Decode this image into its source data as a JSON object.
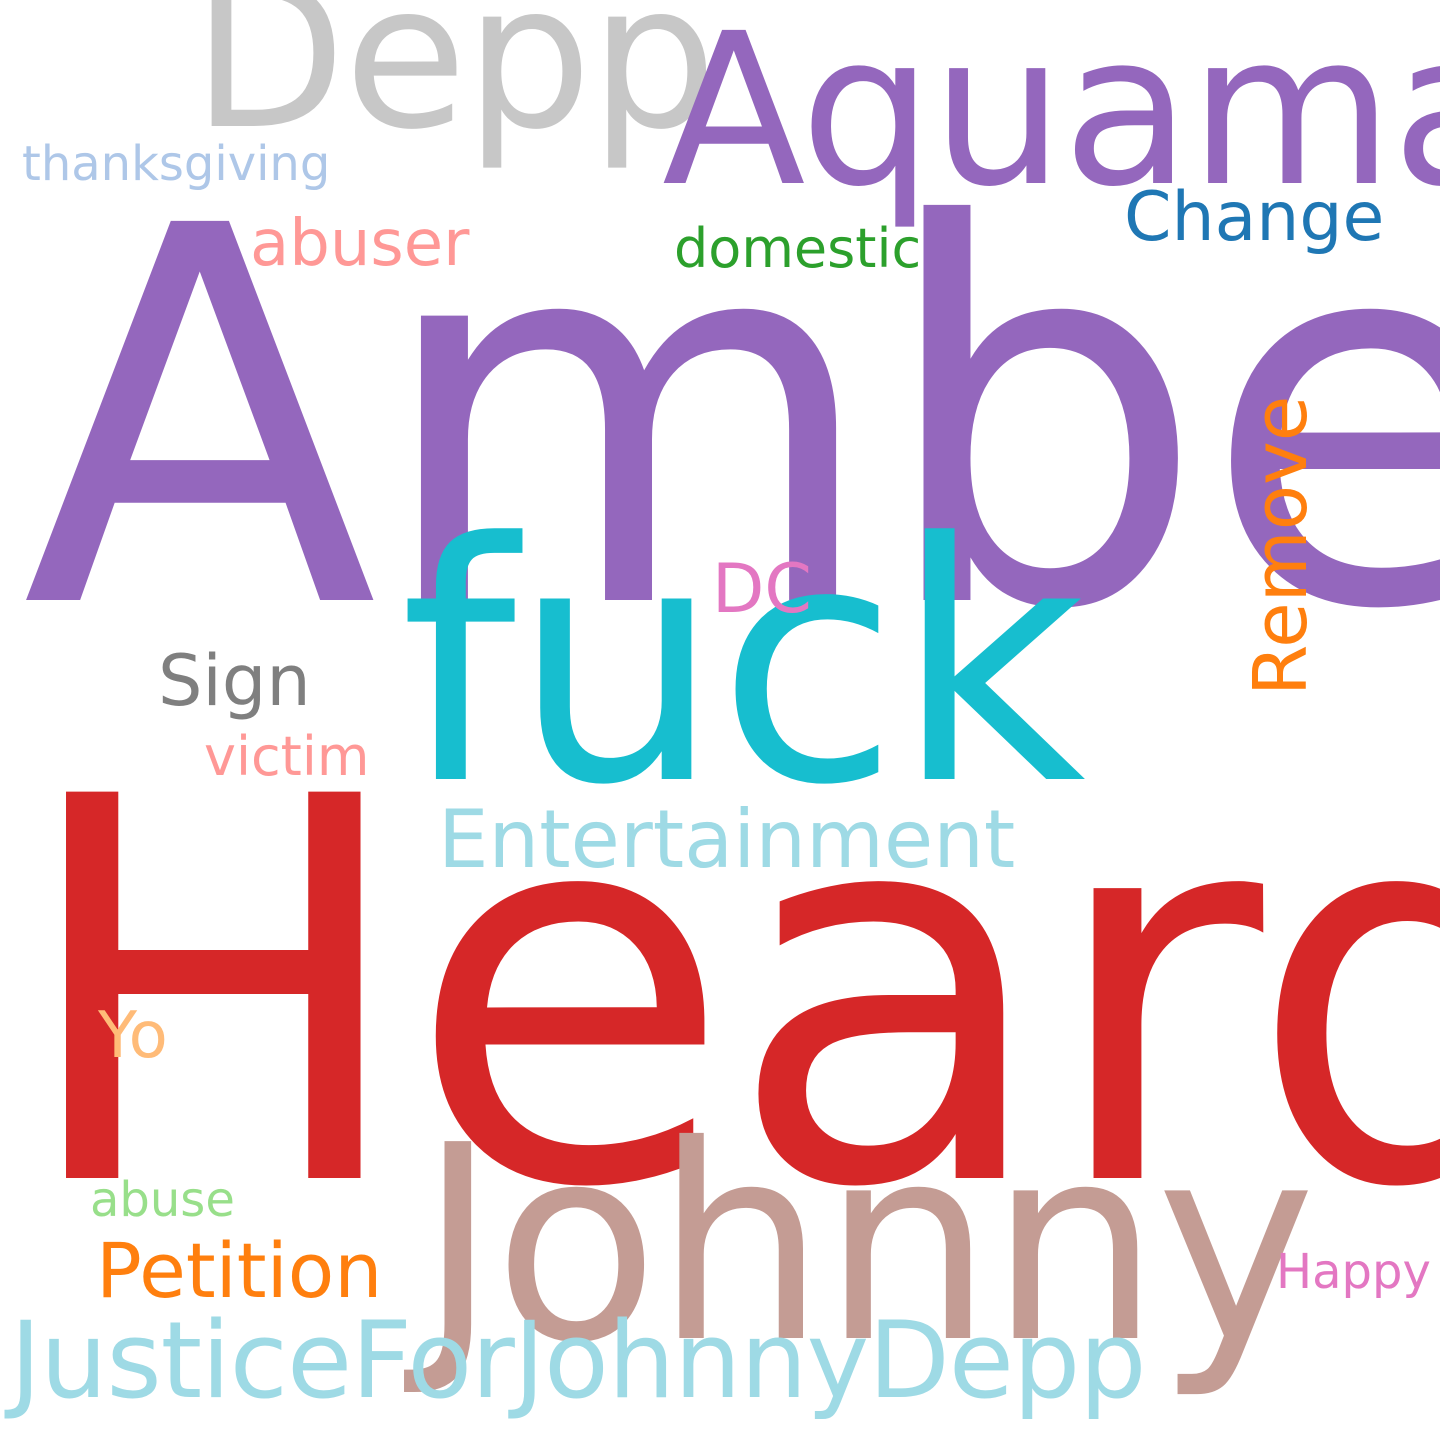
{
  "words": [
    {
      "text": "Amber",
      "color": "#9467bd"
    },
    {
      "text": "Heard",
      "color": "#d62728"
    },
    {
      "text": "fuck",
      "color": "#17becf"
    },
    {
      "text": "Johnny",
      "color": "#c49c94"
    },
    {
      "text": "Aquaman",
      "color": "#9467bd"
    },
    {
      "text": "Depp",
      "color": "#c7c7c7"
    },
    {
      "text": "JusticeForJohnnyDepp",
      "color": "#9edae5"
    },
    {
      "text": "Entertainment",
      "color": "#9edae5"
    },
    {
      "text": "Remove",
      "color": "#ff7f0e"
    },
    {
      "text": "Petition",
      "color": "#ff7f0e"
    },
    {
      "text": "Sign",
      "color": "#7f7f7f"
    },
    {
      "text": "Change",
      "color": "#1f77b4"
    },
    {
      "text": "DC",
      "color": "#e377c2"
    },
    {
      "text": "abuser",
      "color": "#ff9896"
    },
    {
      "text": "Yo",
      "color": "#ffbb78"
    },
    {
      "text": "domestic",
      "color": "#2ca02c"
    },
    {
      "text": "victim",
      "color": "#ff9896"
    },
    {
      "text": "thanksgiving",
      "color": "#aec7e8"
    },
    {
      "text": "abuse",
      "color": "#98df8a"
    },
    {
      "text": "Happy",
      "color": "#e377c2"
    }
  ]
}
